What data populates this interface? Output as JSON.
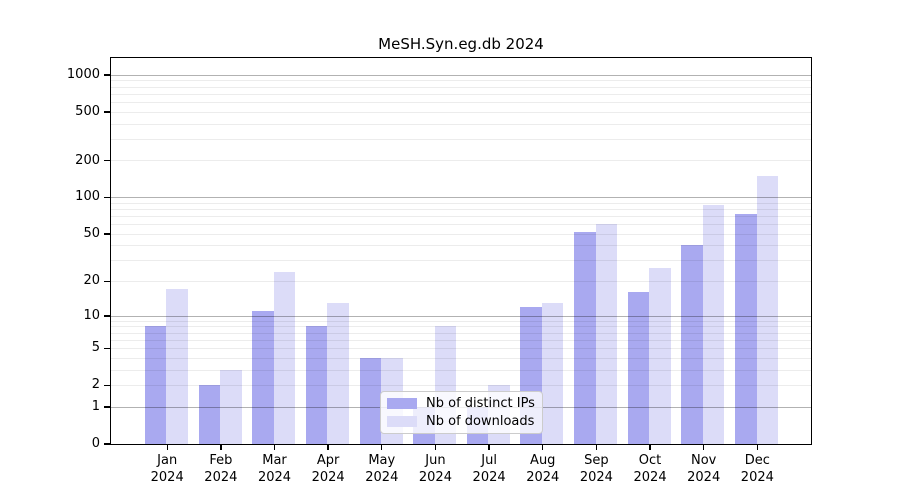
{
  "title": "MeSH.Syn.eg.db 2024",
  "chart_data": {
    "type": "bar",
    "title": "MeSH.Syn.eg.db 2024",
    "categories": [
      "Jan",
      "Feb",
      "Mar",
      "Apr",
      "May",
      "Jun",
      "Jul",
      "Aug",
      "Sep",
      "Oct",
      "Nov",
      "Dec"
    ],
    "x_tick_second_line": "2024",
    "series": [
      {
        "name": "Nb of distinct IPs",
        "color": "#a9a9f0",
        "values": [
          8,
          2,
          11,
          8,
          4,
          1,
          1,
          12,
          52,
          16,
          40,
          73
        ]
      },
      {
        "name": "Nb of downloads",
        "color": "#dcdcf8",
        "values": [
          17,
          3,
          24,
          13,
          4,
          8,
          2,
          13,
          60,
          26,
          86,
          148
        ]
      }
    ],
    "y_ticks": [
      0,
      1,
      2,
      5,
      10,
      20,
      50,
      100,
      200,
      500,
      1000
    ],
    "y_scale": "log10(1+value)",
    "ylim": [
      0,
      1350
    ],
    "xlabel": "",
    "ylabel": "",
    "grid": "major and minor horizontal gridlines, drawn above bars",
    "legend_position": "lower center"
  }
}
